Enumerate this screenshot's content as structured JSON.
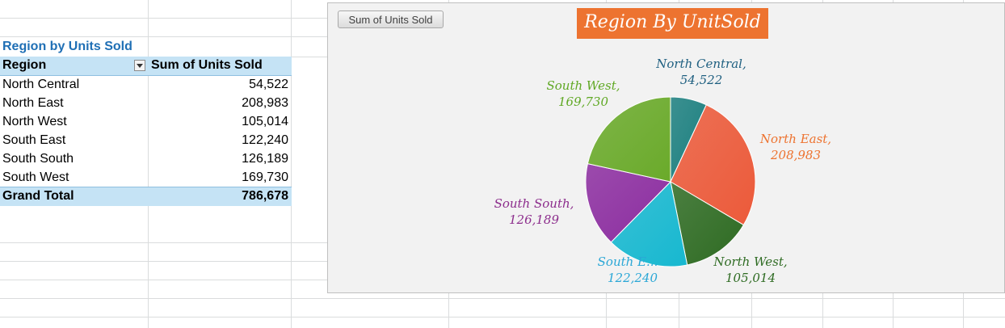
{
  "pivot": {
    "title": "Region by Units Sold",
    "header": {
      "region": "Region",
      "sum": "Sum of Units Sold"
    },
    "rows": [
      {
        "region": "North Central",
        "units": "54,522"
      },
      {
        "region": "North East",
        "units": "208,983"
      },
      {
        "region": "North West",
        "units": "105,014"
      },
      {
        "region": "South East",
        "units": "122,240"
      },
      {
        "region": "South South",
        "units": "126,189"
      },
      {
        "region": "South West",
        "units": "169,730"
      }
    ],
    "grand_total": {
      "label": "Grand Total",
      "units": "786,678"
    }
  },
  "chart": {
    "field_button": "Sum of Units Sold",
    "title": "Region By UnitSold",
    "labels": [
      {
        "name": "North Central,",
        "value": "54,522"
      },
      {
        "name": "North East,",
        "value": "208,983"
      },
      {
        "name": "North West,",
        "value": "105,014"
      },
      {
        "name": "South E...",
        "value": "122,240"
      },
      {
        "name": "South South,",
        "value": "126,189"
      },
      {
        "name": "South West,",
        "value": "169,730"
      }
    ]
  },
  "chart_data": {
    "type": "pie",
    "title": "Region By UnitSold",
    "categories": [
      "North Central",
      "North East",
      "North West",
      "South East",
      "South South",
      "South West"
    ],
    "values": [
      54522,
      208983,
      105014,
      122240,
      126189,
      169730
    ],
    "colors": [
      "#1b7f7f",
      "#ec5a3a",
      "#2e6b22",
      "#17b8d0",
      "#8c2da0",
      "#6aaa2a"
    ],
    "label_colors": [
      "#1e5f80",
      "#ed7330",
      "#2e6b22",
      "#2aa7d6",
      "#8c2d8c",
      "#5fa823"
    ]
  }
}
